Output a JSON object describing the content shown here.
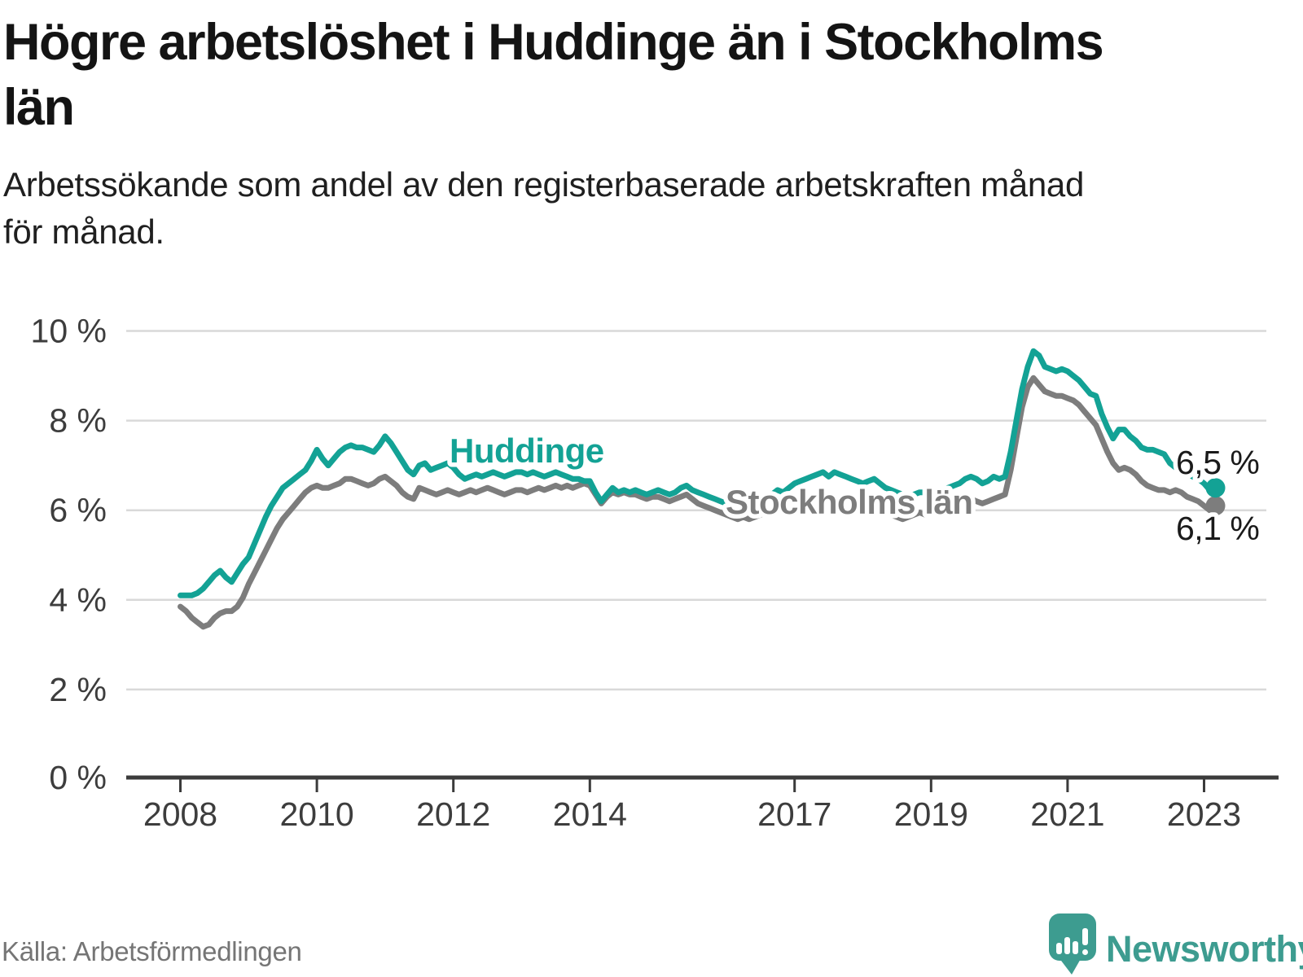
{
  "header": {
    "title_line1": "Högre arbetslöshet i Huddinge än i Stockholms",
    "title_line2": "län",
    "subtitle_line1": "Arbetssökande som andel av den registerbaserade arbetskraften månad",
    "subtitle_line2": "för månad."
  },
  "footer": {
    "source": "Källa: Arbetsförmedlingen",
    "brand": "Newsworthy",
    "brand_icon": "newsworthy-speech-bubble-bar-chart-icon"
  },
  "colors": {
    "background": "#ffffff",
    "huddinge_teal": "#13a295",
    "stockholm_gray": "#7d7d7d",
    "text": "#1a1a1a",
    "axis_text": "#3d3d3d",
    "grid": "#d9d9d9",
    "axis": "#3b3b3b",
    "source_text": "#757575",
    "brand_teal": "#3d9c90"
  },
  "chart_data": {
    "type": "line",
    "title": "Högre arbetslöshet i Huddinge än i Stockholms län",
    "unit": "%",
    "frequency": "monthly",
    "x_start": "2008-01",
    "x_end": "2023-03",
    "ylim": [
      0,
      10
    ],
    "grid": "horizontal",
    "legend_position": "labels-on-lines",
    "y_ticks": [
      0,
      2,
      4,
      6,
      8,
      10
    ],
    "y_tick_labels": [
      "0 %",
      "2 %",
      "4 %",
      "6 %",
      "8 %",
      "10 %"
    ],
    "x_tick_years": [
      2008,
      2010,
      2012,
      2014,
      2017,
      2019,
      2021,
      2023
    ],
    "x_tick_labels": [
      "2008",
      "2010",
      "2012",
      "2014",
      "2017",
      "2019",
      "2021",
      "2023"
    ],
    "series": [
      {
        "name": "Huddinge",
        "color": "#13a295",
        "end_label": "6,5 %",
        "end_value": 6.5,
        "values": [
          4.1,
          4.1,
          4.1,
          4.15,
          4.25,
          4.4,
          4.55,
          4.65,
          4.5,
          4.4,
          4.6,
          4.8,
          4.95,
          5.25,
          5.55,
          5.85,
          6.1,
          6.3,
          6.5,
          6.6,
          6.7,
          6.8,
          6.9,
          7.1,
          7.35,
          7.15,
          7.0,
          7.15,
          7.3,
          7.4,
          7.45,
          7.4,
          7.4,
          7.35,
          7.3,
          7.45,
          7.65,
          7.5,
          7.3,
          7.1,
          6.9,
          6.8,
          7.0,
          7.05,
          6.9,
          6.95,
          7.0,
          7.05,
          6.95,
          6.8,
          6.7,
          6.75,
          6.8,
          6.75,
          6.8,
          6.85,
          6.8,
          6.75,
          6.8,
          6.85,
          6.85,
          6.8,
          6.85,
          6.8,
          6.75,
          6.8,
          6.85,
          6.8,
          6.75,
          6.7,
          6.7,
          6.65,
          6.65,
          6.4,
          6.2,
          6.35,
          6.5,
          6.4,
          6.45,
          6.4,
          6.45,
          6.4,
          6.35,
          6.4,
          6.45,
          6.4,
          6.35,
          6.4,
          6.5,
          6.55,
          6.45,
          6.4,
          6.35,
          6.3,
          6.25,
          6.2,
          6.15,
          6.1,
          6.05,
          6.1,
          6.05,
          6.1,
          6.15,
          6.25,
          6.35,
          6.45,
          6.4,
          6.5,
          6.6,
          6.65,
          6.7,
          6.75,
          6.8,
          6.85,
          6.75,
          6.85,
          6.8,
          6.75,
          6.7,
          6.65,
          6.6,
          6.65,
          6.7,
          6.6,
          6.5,
          6.45,
          6.4,
          6.35,
          6.3,
          6.35,
          6.4,
          6.4,
          6.45,
          6.4,
          6.45,
          6.5,
          6.55,
          6.6,
          6.7,
          6.75,
          6.7,
          6.6,
          6.65,
          6.75,
          6.7,
          6.75,
          7.3,
          8.0,
          8.7,
          9.2,
          9.55,
          9.45,
          9.2,
          9.15,
          9.1,
          9.15,
          9.1,
          9.0,
          8.9,
          8.75,
          8.6,
          8.55,
          8.15,
          7.85,
          7.6,
          7.8,
          7.8,
          7.65,
          7.55,
          7.4,
          7.35,
          7.35,
          7.3,
          7.25,
          7.05,
          6.95,
          6.9,
          6.85,
          6.75,
          6.7,
          6.6,
          6.45,
          6.5
        ]
      },
      {
        "name": "Stockholms län",
        "color": "#7d7d7d",
        "end_label": "6,1 %",
        "end_value": 6.1,
        "values": [
          3.85,
          3.75,
          3.6,
          3.5,
          3.4,
          3.45,
          3.6,
          3.7,
          3.75,
          3.75,
          3.85,
          4.05,
          4.35,
          4.6,
          4.85,
          5.1,
          5.35,
          5.6,
          5.8,
          5.95,
          6.1,
          6.25,
          6.4,
          6.5,
          6.55,
          6.5,
          6.5,
          6.55,
          6.6,
          6.7,
          6.7,
          6.65,
          6.6,
          6.55,
          6.6,
          6.7,
          6.75,
          6.65,
          6.55,
          6.4,
          6.3,
          6.25,
          6.5,
          6.45,
          6.4,
          6.35,
          6.4,
          6.45,
          6.4,
          6.35,
          6.4,
          6.45,
          6.4,
          6.45,
          6.5,
          6.45,
          6.4,
          6.35,
          6.4,
          6.45,
          6.45,
          6.4,
          6.45,
          6.5,
          6.45,
          6.5,
          6.55,
          6.5,
          6.55,
          6.5,
          6.55,
          6.6,
          6.55,
          6.35,
          6.15,
          6.3,
          6.4,
          6.35,
          6.4,
          6.35,
          6.35,
          6.3,
          6.25,
          6.3,
          6.3,
          6.25,
          6.2,
          6.25,
          6.3,
          6.35,
          6.25,
          6.15,
          6.1,
          6.05,
          6.0,
          5.95,
          5.9,
          5.85,
          5.8,
          5.85,
          5.8,
          5.85,
          5.9,
          5.95,
          6.0,
          6.05,
          6.0,
          6.05,
          6.1,
          6.15,
          6.2,
          6.25,
          6.3,
          6.25,
          6.2,
          6.25,
          6.2,
          6.15,
          6.1,
          6.05,
          6.0,
          6.0,
          6.05,
          6.0,
          5.95,
          5.9,
          5.85,
          5.8,
          5.85,
          5.9,
          5.95,
          5.9,
          5.95,
          5.9,
          5.95,
          6.0,
          6.05,
          6.1,
          6.2,
          6.25,
          6.2,
          6.15,
          6.2,
          6.25,
          6.3,
          6.35,
          6.9,
          7.6,
          8.3,
          8.75,
          8.95,
          8.8,
          8.65,
          8.6,
          8.55,
          8.55,
          8.5,
          8.45,
          8.35,
          8.2,
          8.05,
          7.9,
          7.6,
          7.3,
          7.05,
          6.9,
          6.95,
          6.9,
          6.8,
          6.65,
          6.55,
          6.5,
          6.45,
          6.45,
          6.4,
          6.45,
          6.4,
          6.3,
          6.25,
          6.2,
          6.1,
          6.0,
          6.1
        ]
      }
    ]
  }
}
